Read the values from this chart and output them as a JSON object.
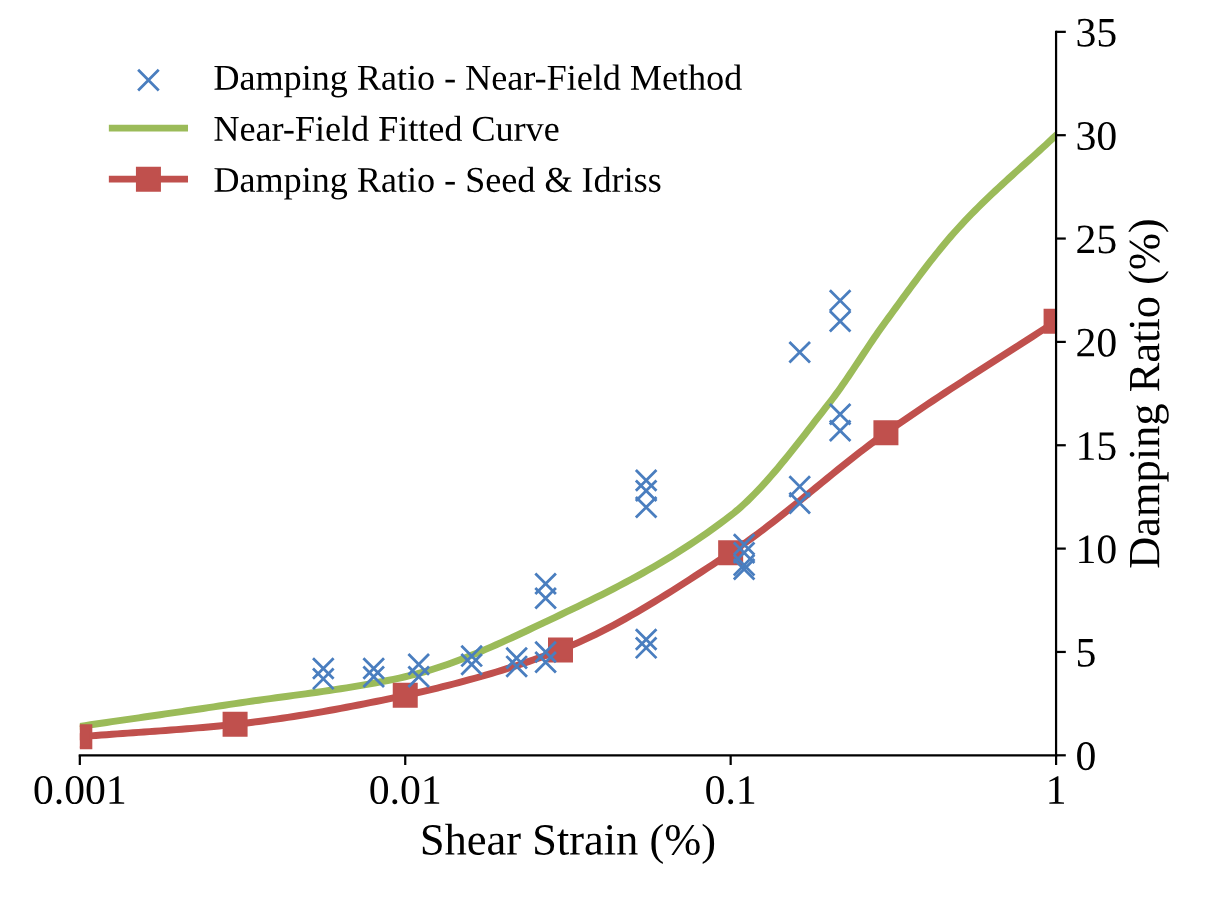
{
  "chart_data": {
    "type": "scatter",
    "xlabel": "Shear Strain (%)",
    "ylabel": "Damping Ratio (%)",
    "log": "x",
    "xlim": [
      0.001,
      1
    ],
    "xticks": [
      0.001,
      0.01,
      0.1,
      1
    ],
    "ylim": [
      0,
      35
    ],
    "yticks": [
      0,
      5,
      10,
      15,
      20,
      25,
      30,
      35
    ],
    "grid": false,
    "legend": "top left",
    "series": [
      {
        "name": "Damping Ratio - Near-Field Method",
        "marker": "cross",
        "color": "#4a7ebf",
        "x": [
          0.0056,
          0.0056,
          0.008,
          0.008,
          0.011,
          0.011,
          0.016,
          0.016,
          0.022,
          0.022,
          0.027,
          0.027,
          0.027,
          0.027,
          0.055,
          0.055,
          0.055,
          0.055,
          0.055,
          0.11,
          0.11,
          0.11,
          0.11,
          0.163,
          0.163,
          0.163,
          0.217,
          0.217,
          0.217,
          0.217
        ],
        "values": [
          4.2,
          3.7,
          4.2,
          3.8,
          4.4,
          3.8,
          4.8,
          4.4,
          4.7,
          4.3,
          8.3,
          7.6,
          5.0,
          4.5,
          13.3,
          12.8,
          12.0,
          5.6,
          5.2,
          10.2,
          9.8,
          9.0,
          9.2,
          19.5,
          13.0,
          12.2,
          22.0,
          21.0,
          16.5,
          15.7
        ]
      },
      {
        "name": "Near-Field Fitted Curve",
        "type": "line",
        "marker": "none",
        "color": "#9bbb59",
        "x": [
          0.001,
          0.003,
          0.01,
          0.03,
          0.1,
          0.2,
          0.3,
          0.5,
          1
        ],
        "values": [
          1.4,
          2.5,
          3.8,
          6.8,
          11.6,
          17.0,
          21.0,
          25.5,
          30.0
        ]
      },
      {
        "name": "Damping Ratio - Seed & Idriss",
        "type": "line",
        "marker": "square",
        "color": "#c0504d",
        "x": [
          0.001,
          0.003,
          0.01,
          0.03,
          0.1,
          0.3,
          1
        ],
        "values": [
          0.9,
          1.5,
          2.9,
          5.1,
          9.8,
          15.6,
          21.0
        ]
      }
    ]
  }
}
